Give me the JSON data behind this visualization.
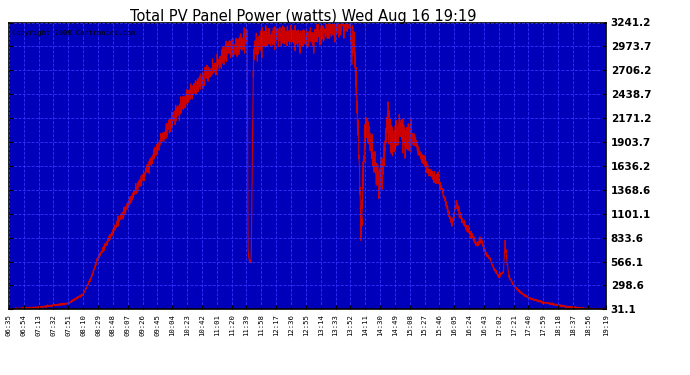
{
  "title": "Total PV Panel Power (watts) Wed Aug 16 19:19",
  "copyright": "Copyright 2008 Cartronics.com",
  "plot_bg_color": "#0000bb",
  "line_color": "#cc0000",
  "grid_color": "#3333ff",
  "yticks": [
    31.1,
    298.6,
    566.1,
    833.6,
    1101.1,
    1368.6,
    1636.2,
    1903.7,
    2171.2,
    2438.7,
    2706.2,
    2973.7,
    3241.2
  ],
  "ymin": 31.1,
  "ymax": 3241.2,
  "xtick_labels": [
    "06:35",
    "06:54",
    "07:13",
    "07:32",
    "07:51",
    "08:10",
    "08:29",
    "08:48",
    "09:07",
    "09:26",
    "09:45",
    "10:04",
    "10:23",
    "10:42",
    "11:01",
    "11:20",
    "11:39",
    "11:58",
    "12:17",
    "12:36",
    "12:55",
    "13:14",
    "13:33",
    "13:52",
    "14:11",
    "14:30",
    "14:49",
    "15:08",
    "15:27",
    "15:46",
    "16:05",
    "16:24",
    "16:43",
    "17:02",
    "17:21",
    "17:40",
    "17:59",
    "18:18",
    "18:37",
    "18:56",
    "19:19"
  ]
}
